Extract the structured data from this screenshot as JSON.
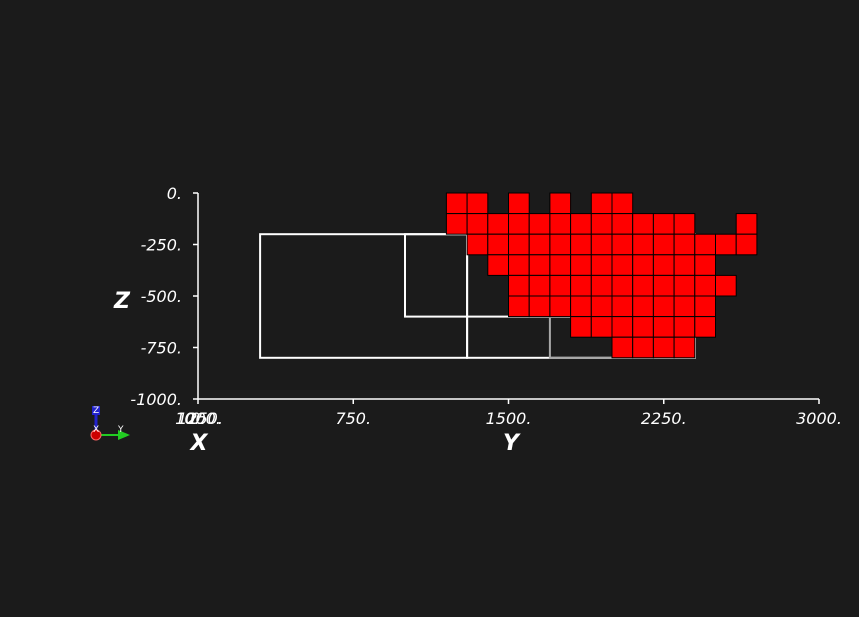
{
  "colors": {
    "background": "#1b1b1b",
    "cell_fill": "#ff0000",
    "cell_edge": "#000000",
    "axis": "#ffffff",
    "outline_primary": "#ffffff",
    "outline_secondary": "#a8a8a8",
    "triad_x": "#cc0000",
    "triad_y": "#22cc22",
    "triad_z": "#2222cc"
  },
  "chart_data": {
    "type": "heatmap",
    "view": "3d-orthographic-side",
    "grid": false,
    "y_axis": {
      "title": "Y",
      "range": [
        0,
        3000
      ],
      "ticks": [
        0,
        750,
        1500,
        2250,
        3000
      ],
      "tick_labels": [
        "0.",
        "750.",
        "1500.",
        "2250.",
        "3000."
      ]
    },
    "z_axis": {
      "title": "Z",
      "range": [
        -1000,
        0
      ],
      "ticks": [
        0,
        -250,
        -500,
        -750,
        -1000
      ],
      "tick_labels": [
        "0.",
        "-250.",
        "-500.",
        "-750.",
        "-1000."
      ]
    },
    "x_axis": {
      "title": "X",
      "overlapping_tick_labels": [
        "0.",
        "1000.",
        "1250."
      ]
    },
    "cell_size": {
      "y": 100,
      "z": 100
    },
    "cells": [
      [
        1200,
        0
      ],
      [
        1300,
        0
      ],
      [
        1500,
        0
      ],
      [
        1700,
        0
      ],
      [
        1900,
        0
      ],
      [
        2000,
        0
      ],
      [
        1200,
        -100
      ],
      [
        1300,
        -100
      ],
      [
        1400,
        -100
      ],
      [
        1500,
        -100
      ],
      [
        1600,
        -100
      ],
      [
        1700,
        -100
      ],
      [
        1800,
        -100
      ],
      [
        1900,
        -100
      ],
      [
        2000,
        -100
      ],
      [
        2100,
        -100
      ],
      [
        2200,
        -100
      ],
      [
        2300,
        -100
      ],
      [
        2600,
        -100
      ],
      [
        1300,
        -200
      ],
      [
        1400,
        -200
      ],
      [
        1500,
        -200
      ],
      [
        1600,
        -200
      ],
      [
        1700,
        -200
      ],
      [
        1800,
        -200
      ],
      [
        1900,
        -200
      ],
      [
        2000,
        -200
      ],
      [
        2100,
        -200
      ],
      [
        2200,
        -200
      ],
      [
        2300,
        -200
      ],
      [
        2400,
        -200
      ],
      [
        2500,
        -200
      ],
      [
        2600,
        -200
      ],
      [
        1400,
        -300
      ],
      [
        1500,
        -300
      ],
      [
        1600,
        -300
      ],
      [
        1700,
        -300
      ],
      [
        1800,
        -300
      ],
      [
        1900,
        -300
      ],
      [
        2000,
        -300
      ],
      [
        2100,
        -300
      ],
      [
        2200,
        -300
      ],
      [
        2300,
        -300
      ],
      [
        2400,
        -300
      ],
      [
        1500,
        -400
      ],
      [
        1600,
        -400
      ],
      [
        1700,
        -400
      ],
      [
        1800,
        -400
      ],
      [
        1900,
        -400
      ],
      [
        2000,
        -400
      ],
      [
        2100,
        -400
      ],
      [
        2200,
        -400
      ],
      [
        2300,
        -400
      ],
      [
        2400,
        -400
      ],
      [
        2500,
        -400
      ],
      [
        1500,
        -500
      ],
      [
        1600,
        -500
      ],
      [
        1700,
        -500
      ],
      [
        1800,
        -500
      ],
      [
        1900,
        -500
      ],
      [
        2000,
        -500
      ],
      [
        2100,
        -500
      ],
      [
        2200,
        -500
      ],
      [
        2300,
        -500
      ],
      [
        2400,
        -500
      ],
      [
        1800,
        -600
      ],
      [
        1900,
        -600
      ],
      [
        2000,
        -600
      ],
      [
        2100,
        -600
      ],
      [
        2200,
        -600
      ],
      [
        2300,
        -600
      ],
      [
        2400,
        -600
      ],
      [
        2000,
        -700
      ],
      [
        2100,
        -700
      ],
      [
        2200,
        -700
      ],
      [
        2300,
        -700
      ]
    ],
    "outlines": [
      {
        "y": [
          300,
          1300
        ],
        "z": [
          -200,
          -800
        ],
        "color": "primary"
      },
      {
        "y": [
          1000,
          2000
        ],
        "z": [
          -200,
          -600
        ],
        "color": "primary"
      },
      {
        "y": [
          1300,
          2400
        ],
        "z": [
          -200,
          -800
        ],
        "color": "primary"
      },
      {
        "y": [
          1700,
          2200
        ],
        "z": [
          -200,
          -800
        ],
        "color": "secondary"
      }
    ],
    "orientation_triad": {
      "labels": [
        "Z",
        "X",
        "Y"
      ]
    }
  }
}
